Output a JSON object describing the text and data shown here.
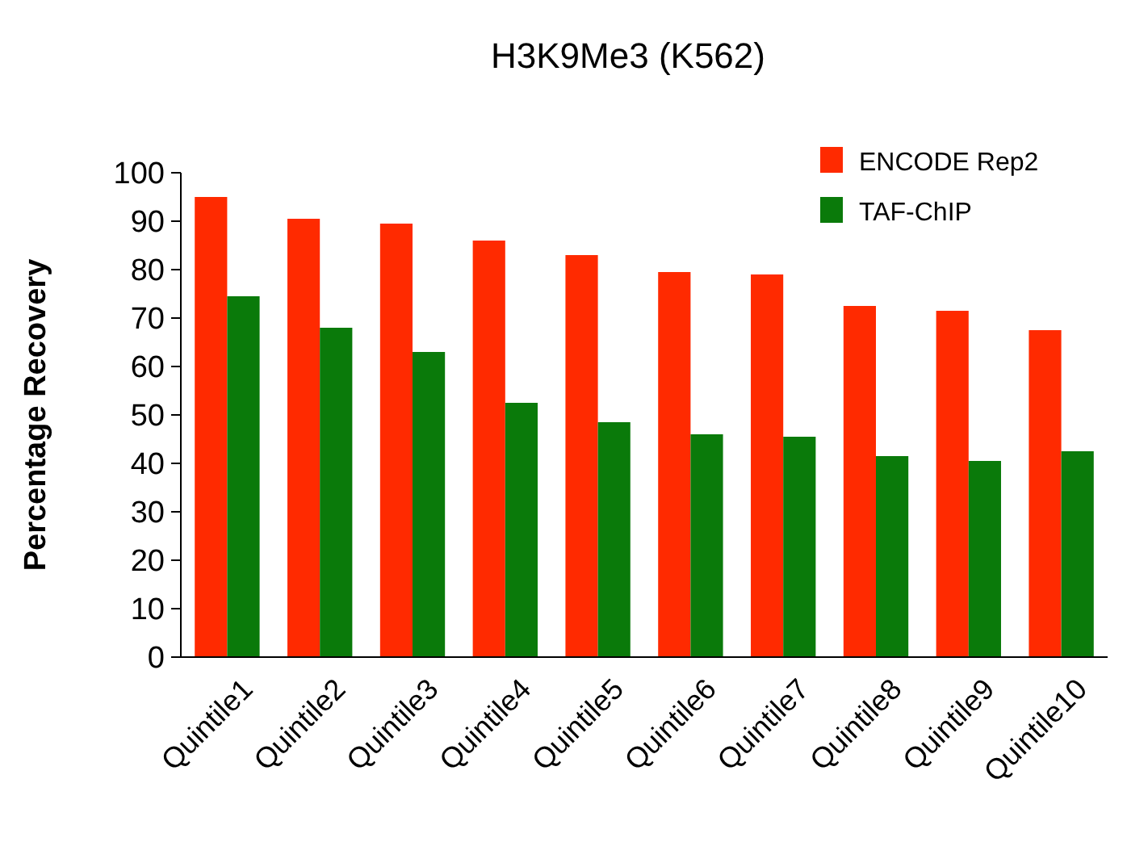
{
  "chart_data": {
    "type": "bar",
    "title": "H3K9Me3 (K562)",
    "ylabel": "Percentage Recovery",
    "categories": [
      "Quintile1",
      "Quintile2",
      "Quintile3",
      "Quintile4",
      "Quintile5",
      "Quintile6",
      "Quintile7",
      "Quintile8",
      "Quintile9",
      "Quintile10"
    ],
    "series": [
      {
        "name": "ENCODE Rep2",
        "color": "#ff2a00",
        "values": [
          95,
          90.5,
          89.5,
          86,
          83,
          79.5,
          79,
          72.5,
          71.5,
          67.5
        ]
      },
      {
        "name": "TAF-ChIP",
        "color": "#0a7a0a",
        "values": [
          74.5,
          68,
          63,
          52.5,
          48.5,
          46,
          45.5,
          41.5,
          40.5,
          42.5
        ]
      }
    ],
    "ylim": [
      0,
      100
    ],
    "yticks": [
      0,
      10,
      20,
      30,
      40,
      50,
      60,
      70,
      80,
      90,
      100
    ],
    "grid": false,
    "legend": "top right"
  }
}
